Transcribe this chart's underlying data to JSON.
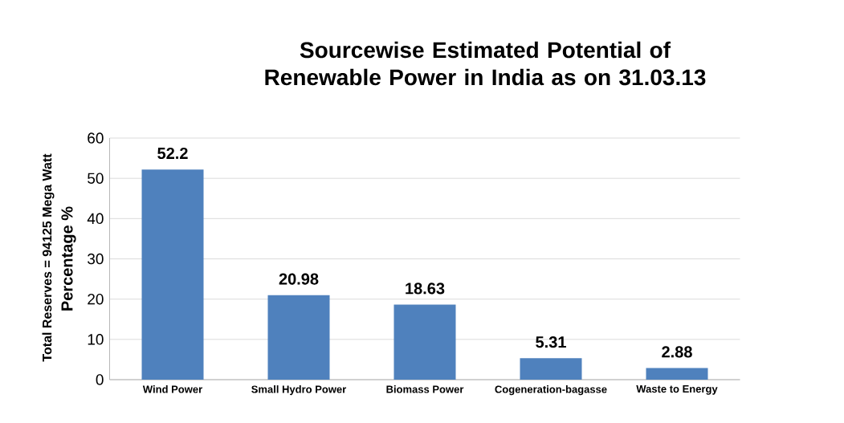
{
  "chart_data": {
    "type": "bar",
    "title": "Sourcewise Estimated Potential of Renewable Power in India as on 31.03.13",
    "ylabel": "Percentage %",
    "annotations": [
      "Total  Reserves = 94125 Mega Watt"
    ],
    "categories": [
      "Wind Power",
      "Small Hydro Power",
      "Biomass Power",
      "Cogeneration-bagasse",
      "Waste to Energy"
    ],
    "values": [
      52.2,
      20.98,
      18.63,
      5.31,
      2.88
    ],
    "color": "#4f81bd",
    "ylim": [
      0,
      60
    ],
    "yticks": [
      0,
      10,
      20,
      30,
      40,
      50,
      60
    ],
    "grid": "y",
    "data_labels": true
  }
}
